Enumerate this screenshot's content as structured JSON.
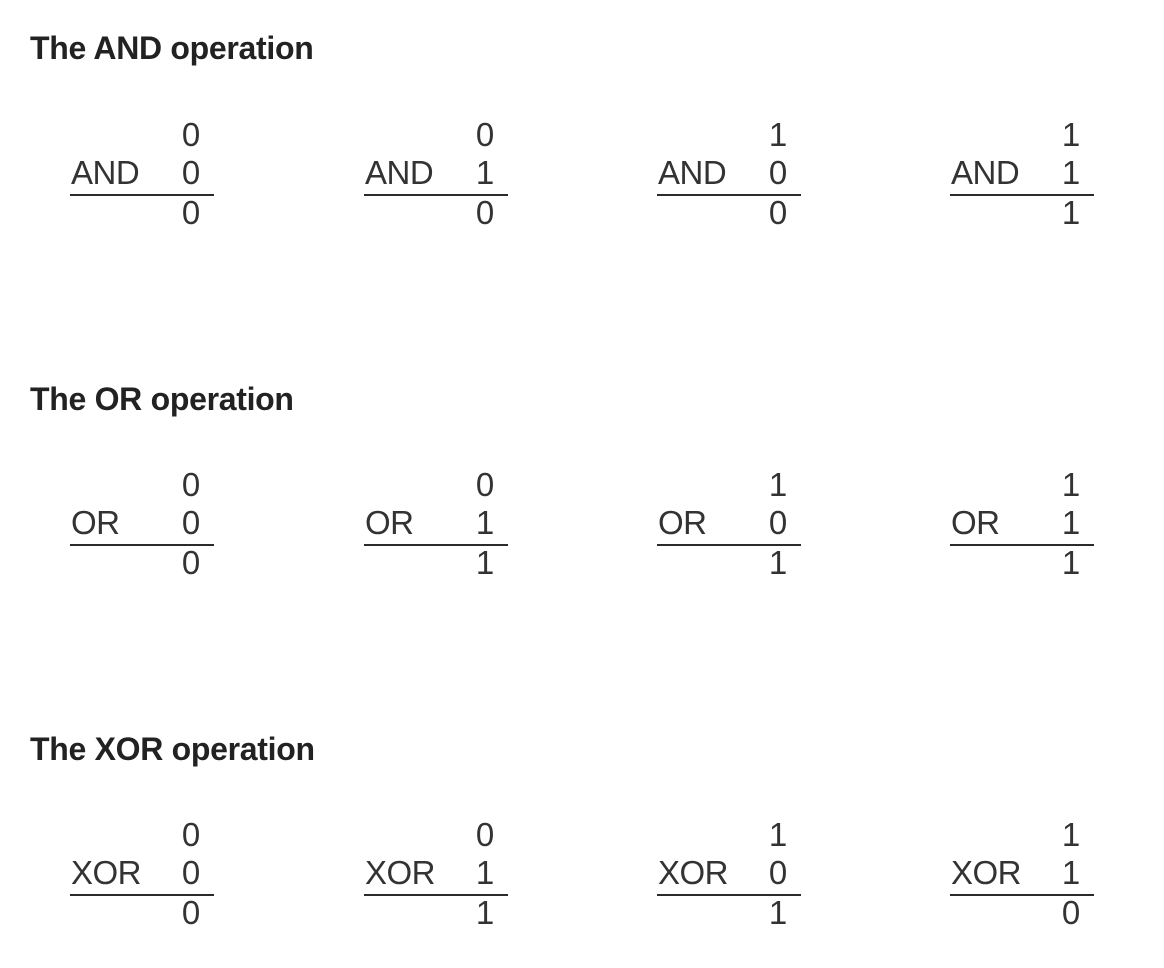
{
  "sections": [
    {
      "title": "The AND operation",
      "problems": [
        {
          "operator": "AND",
          "a": "0",
          "b": "0",
          "result": "0"
        },
        {
          "operator": "AND",
          "a": "0",
          "b": "1",
          "result": "0"
        },
        {
          "operator": "AND",
          "a": "1",
          "b": "0",
          "result": "0"
        },
        {
          "operator": "AND",
          "a": "1",
          "b": "1",
          "result": "1"
        }
      ]
    },
    {
      "title": "The OR operation",
      "problems": [
        {
          "operator": "OR",
          "a": "0",
          "b": "0",
          "result": "0"
        },
        {
          "operator": "OR",
          "a": "0",
          "b": "1",
          "result": "1"
        },
        {
          "operator": "OR",
          "a": "1",
          "b": "0",
          "result": "1"
        },
        {
          "operator": "OR",
          "a": "1",
          "b": "1",
          "result": "1"
        }
      ]
    },
    {
      "title": "The XOR operation",
      "problems": [
        {
          "operator": "XOR",
          "a": "0",
          "b": "0",
          "result": "0"
        },
        {
          "operator": "XOR",
          "a": "0",
          "b": "1",
          "result": "1"
        },
        {
          "operator": "XOR",
          "a": "1",
          "b": "0",
          "result": "1"
        },
        {
          "operator": "XOR",
          "a": "1",
          "b": "1",
          "result": "0"
        }
      ]
    }
  ]
}
